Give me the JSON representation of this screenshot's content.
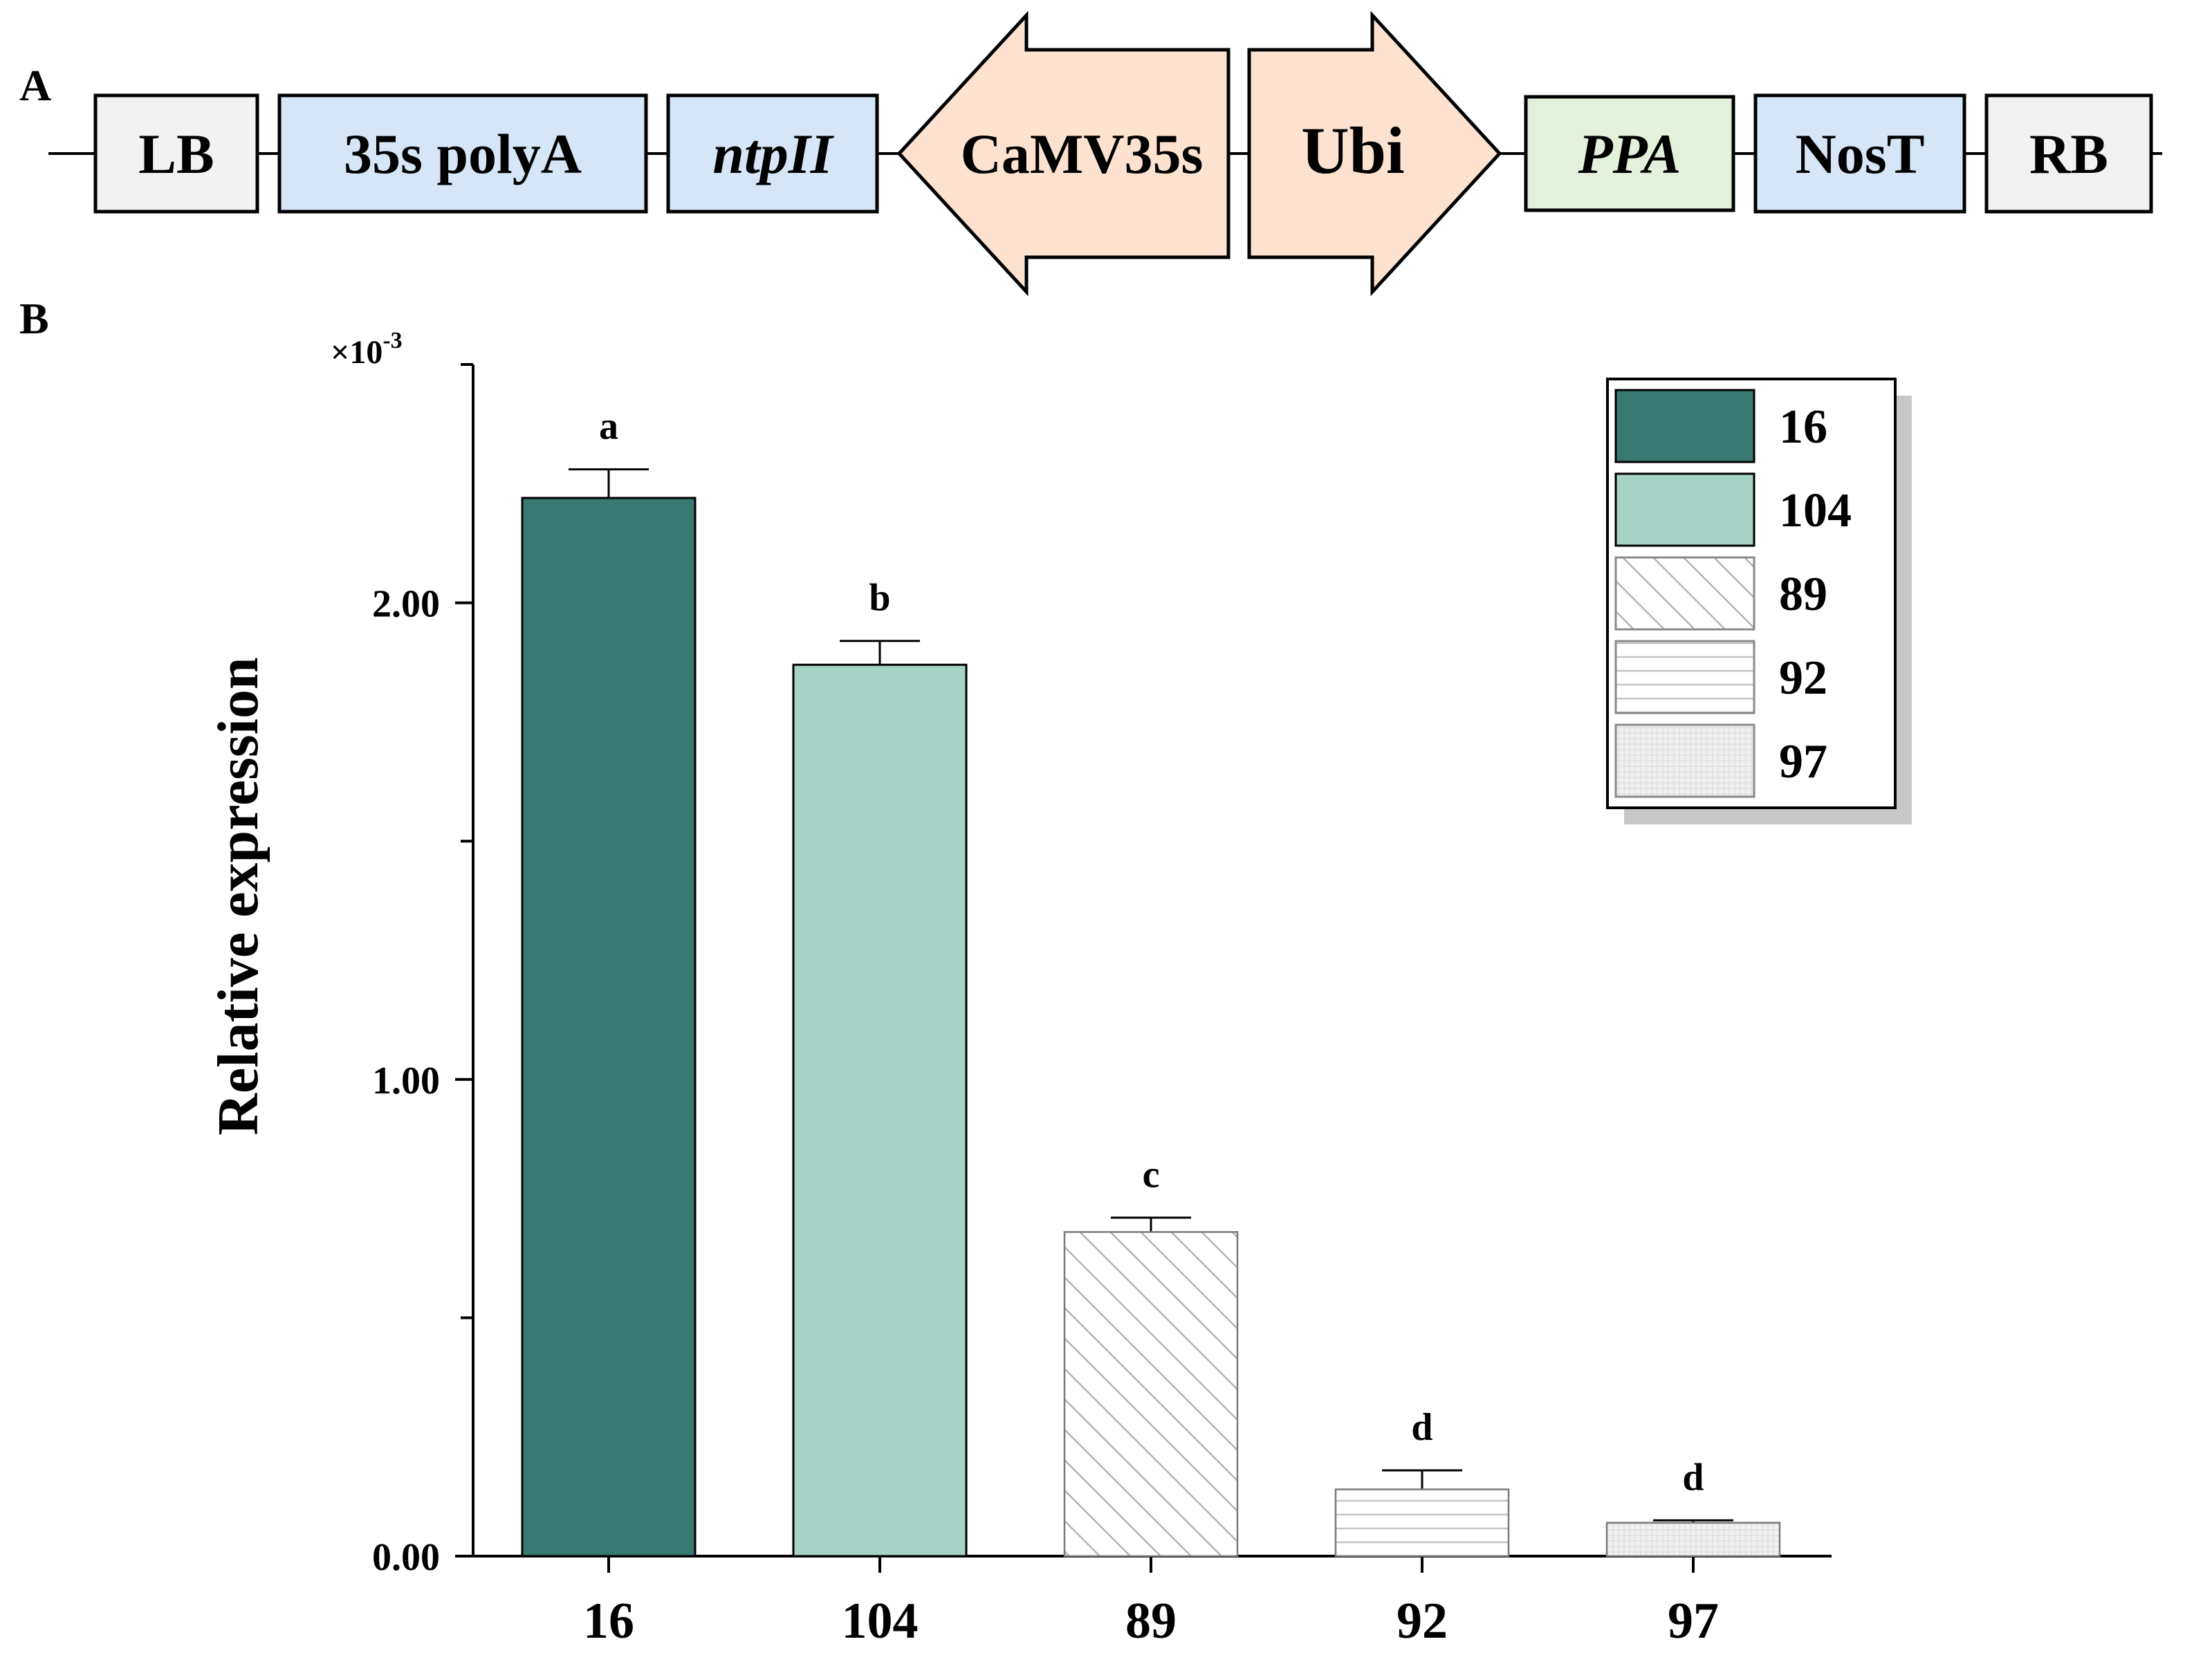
{
  "panel_a": {
    "label": "A",
    "elements": [
      {
        "text": "LB",
        "kind": "box",
        "fill": "#f2f2f2",
        "italic": false
      },
      {
        "text": "35s polyA",
        "kind": "box",
        "fill": "#d6e6f6",
        "italic": false
      },
      {
        "text": "ntpII",
        "kind": "box",
        "fill": "#d6e6f6",
        "italic": true
      },
      {
        "text": "CaMV35s",
        "kind": "arrow-left",
        "fill": "#fde2cf",
        "italic": false
      },
      {
        "text": "Ubi",
        "kind": "arrow-right",
        "fill": "#fde2cf",
        "italic": false
      },
      {
        "text": "PPA",
        "kind": "box",
        "fill": "#e3f0dc",
        "italic": true
      },
      {
        "text": "NosT",
        "kind": "box",
        "fill": "#d6e6f6",
        "italic": false
      },
      {
        "text": "RB",
        "kind": "box",
        "fill": "#f2f2f2",
        "italic": false
      }
    ]
  },
  "panel_b": {
    "label": "B"
  },
  "chart_data": {
    "type": "bar",
    "title": "",
    "xlabel": "",
    "ylabel": "Relative expression",
    "y_multiplier": "×10",
    "y_exponent": "-3",
    "ylim": [
      0,
      2.5
    ],
    "yticks": [
      0,
      1,
      2
    ],
    "ytick_labels": [
      "0.00",
      "1.00",
      "2.00"
    ],
    "y_minor_step": 0.5,
    "categories": [
      "16",
      "104",
      "89",
      "92",
      "97"
    ],
    "values": [
      2.22,
      1.87,
      0.68,
      0.14,
      0.07
    ],
    "errors": [
      0.06,
      0.05,
      0.03,
      0.04,
      0.005
    ],
    "significance": [
      "a",
      "b",
      "c",
      "d",
      "d"
    ],
    "fills": [
      "#3a7872",
      "#a7d3c6",
      "hatch-diagonal",
      "hatch-horizontal",
      "hatch-grid"
    ],
    "legend": {
      "position": "top-right",
      "entries": [
        "16",
        "104",
        "89",
        "92",
        "97"
      ]
    }
  }
}
